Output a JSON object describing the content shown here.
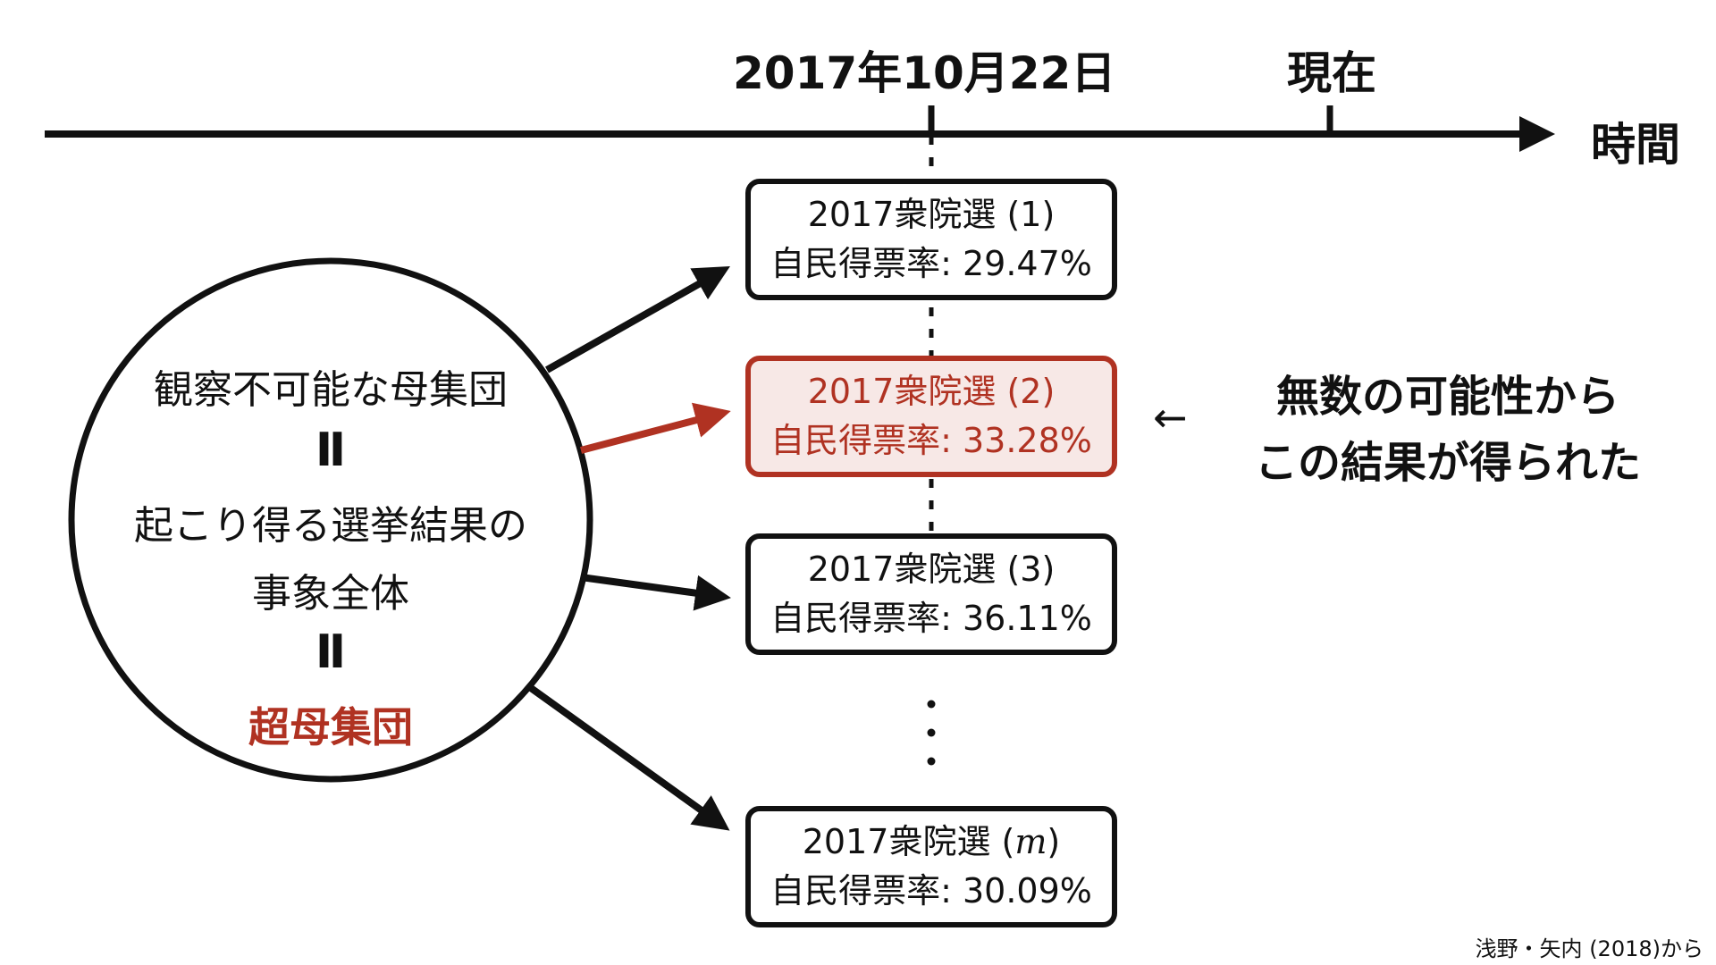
{
  "timeline": {
    "date_label": "2017年10月22日",
    "now_label": "現在",
    "axis_label": "時間"
  },
  "circle": {
    "line1": "観察不可能な母集団",
    "eq1": "Ⅱ",
    "line2": "起こり得る選挙結果の",
    "line3": "事象全体",
    "eq2": "Ⅱ",
    "accent": "超母集団"
  },
  "boxes": [
    {
      "title": "2017衆院選 (1)",
      "value": "自民得票率: 29.47%"
    },
    {
      "title": "2017衆院選 (2)",
      "value": "自民得票率: 33.28%"
    },
    {
      "title": "2017衆院選 (3)",
      "value": "自民得票率: 36.11%"
    },
    {
      "title_prefix": "2017衆院選 (",
      "title_var": "m",
      "title_suffix": ")",
      "value": "自民得票率: 30.09%"
    }
  ],
  "note": {
    "arrow": "←",
    "line1": "無数の可能性から",
    "line2": "この結果が得られた"
  },
  "source": "浅野・矢内 (2018)から",
  "colors": {
    "accent": "#b03222",
    "ink": "#111111",
    "highlight_fill": "#f7e8e6"
  }
}
